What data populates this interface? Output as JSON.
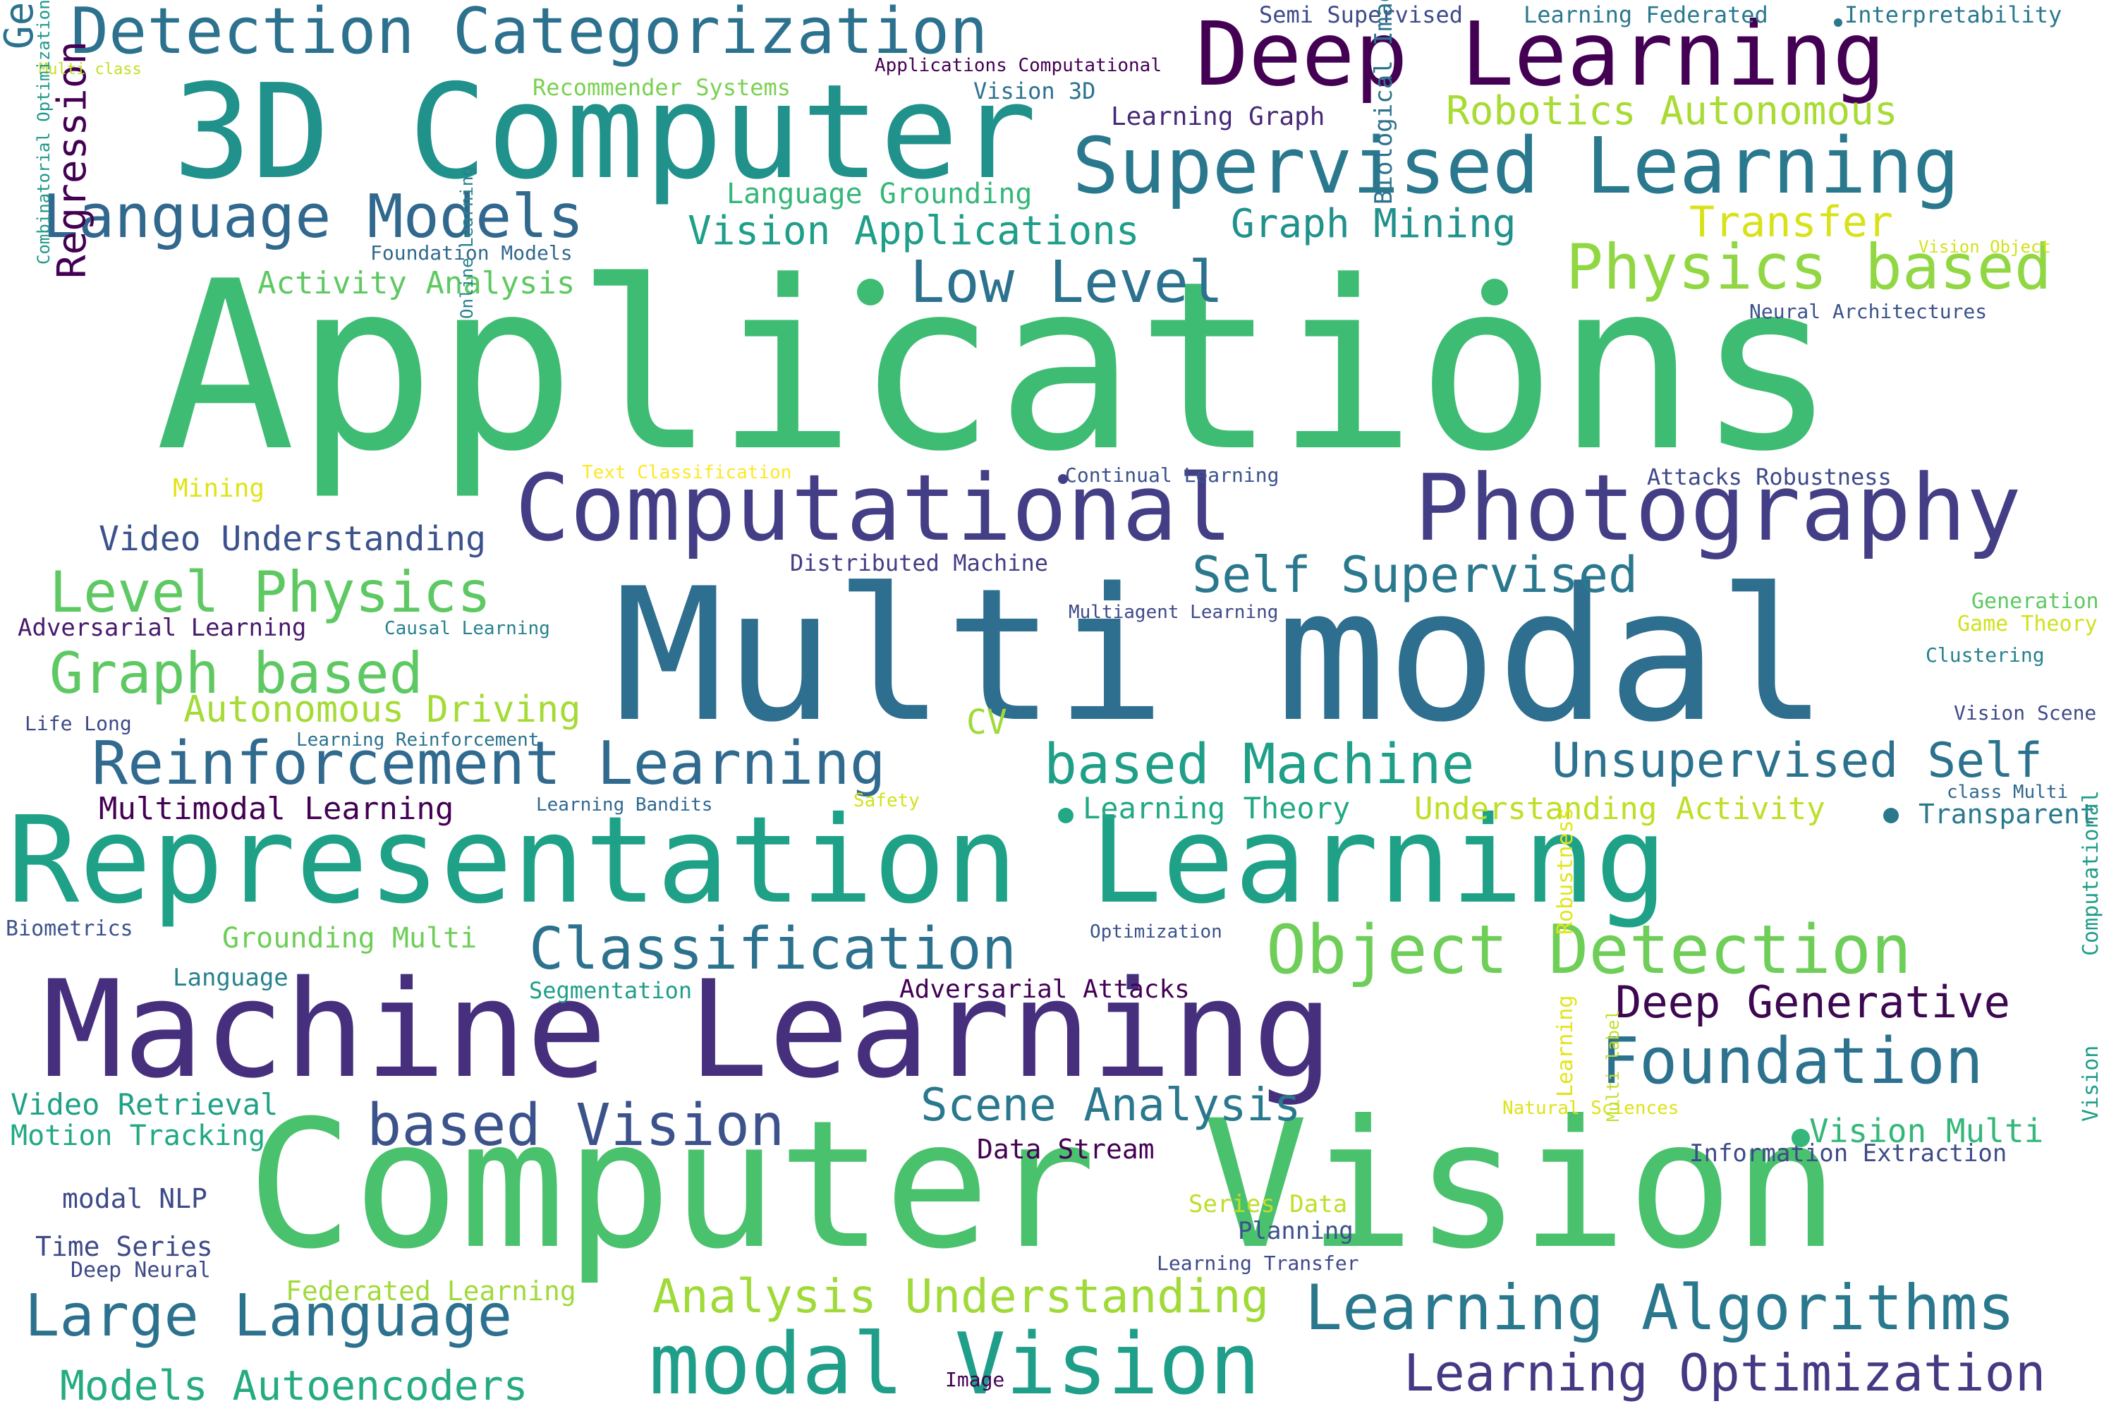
{
  "words": [
    {
      "text": "Applications",
      "color": "#3fbc73"
    },
    {
      "text": "Multi modal",
      "color": "#2e6e8e"
    },
    {
      "text": "Computer Vision",
      "color": "#4ac16d"
    },
    {
      "text": "Representation Learning",
      "color": "#1fa187"
    },
    {
      "text": "Machine Learning",
      "color": "#46307e"
    },
    {
      "text": "3D Computer",
      "color": "#21918c"
    },
    {
      "text": "Deep Learning",
      "color": "#440154"
    },
    {
      "text": "Computational",
      "color": "#433e85"
    },
    {
      "text": "Photography",
      "color": "#433e85"
    },
    {
      "text": "Supervised Learning",
      "color": "#2a788e"
    },
    {
      "text": "Detection Categorization",
      "color": "#2c728e"
    },
    {
      "text": "Language Models",
      "color": "#31688e"
    },
    {
      "text": "modal Vision",
      "color": "#1f9e89"
    },
    {
      "text": "Reinforcement Learning",
      "color": "#306a8e"
    },
    {
      "text": "based Machine",
      "color": "#1f9f88"
    },
    {
      "text": "Object Detection",
      "color": "#6ece58"
    },
    {
      "text": "Physics based",
      "color": "#90d743"
    },
    {
      "text": "Learning Algorithms",
      "color": "#2a788e"
    },
    {
      "text": "Large Language",
      "color": "#2c728e"
    },
    {
      "text": "Level Physics",
      "color": "#5ec962"
    },
    {
      "text": "Foundation",
      "color": "#2c728e"
    },
    {
      "text": "based Vision",
      "color": "#3b528b"
    },
    {
      "text": "Classification",
      "color": "#2c728e"
    },
    {
      "text": "Low Level",
      "color": "#2c728e"
    },
    {
      "text": "Graph based",
      "color": "#5ec962"
    },
    {
      "text": "Learning Optimization",
      "color": "#443983"
    },
    {
      "text": "Self Supervised",
      "color": "#2a788e"
    },
    {
      "text": "Unsupervised Self",
      "color": "#2c728e"
    },
    {
      "text": "Deep Generative",
      "color": "#3e0751"
    },
    {
      "text": "Analysis Understanding",
      "color": "#a0da39"
    },
    {
      "text": "Scene Analysis",
      "color": "#2a788e"
    },
    {
      "text": "Models Autoencoders",
      "color": "#25ab82"
    },
    {
      "text": "Vision Applications",
      "color": "#1f9e89"
    },
    {
      "text": "Robotics Autonomous",
      "color": "#a8db34"
    },
    {
      "text": "Transfer",
      "color": "#d8e219"
    },
    {
      "text": "Graph Mining",
      "color": "#21918c"
    },
    {
      "text": "Autonomous Driving",
      "color": "#a5db36"
    },
    {
      "text": "Video Understanding",
      "color": "#3b528b"
    },
    {
      "text": "Regression",
      "color": "#440154"
    },
    {
      "text": "Generative Models",
      "color": "#2c728e"
    },
    {
      "text": "Multimodal Learning",
      "color": "#440154"
    },
    {
      "text": "Learning Theory",
      "color": "#22a884"
    },
    {
      "text": "Understanding Activity",
      "color": "#bddf26"
    },
    {
      "text": "Transparent",
      "color": "#2a788e"
    },
    {
      "text": "Vision Multi",
      "color": "#35b779"
    },
    {
      "text": "Grounding Multi",
      "color": "#6ece58"
    },
    {
      "text": "Video Retrieval",
      "color": "#1fa187"
    },
    {
      "text": "Motion Tracking",
      "color": "#22a884"
    },
    {
      "text": "Activity Analysis",
      "color": "#5ec962"
    },
    {
      "text": "Language Grounding",
      "color": "#35b779"
    },
    {
      "text": "Recommender Systems",
      "color": "#7ad151"
    },
    {
      "text": "Vision 3D",
      "color": "#2c728e"
    },
    {
      "text": "Learning Graph",
      "color": "#482878"
    },
    {
      "text": "Semi Supervised",
      "color": "#3e4a89"
    },
    {
      "text": "Learning Federated",
      "color": "#2a788e"
    },
    {
      "text": "Interpretability",
      "color": "#2a788e"
    },
    {
      "text": "Applications Computational",
      "color": "#440154"
    },
    {
      "text": "Multi class",
      "color": "#c2df23"
    },
    {
      "text": "Foundation Models",
      "color": "#31688e"
    },
    {
      "text": "Vision Object",
      "color": "#d2e21b"
    },
    {
      "text": "Neural Architectures",
      "color": "#3b528b"
    },
    {
      "text": "Biological Imaging",
      "color": "#2c728e"
    },
    {
      "text": "Online Learning",
      "color": "#26828e"
    },
    {
      "text": "Combinatorial Optimization",
      "color": "#1f988b"
    },
    {
      "text": "Mining",
      "color": "#e0e318"
    },
    {
      "text": "Text Classification",
      "color": "#fde725"
    },
    {
      "text": "Continual Learning",
      "color": "#3b528b"
    },
    {
      "text": "Attacks Robustness",
      "color": "#3e4a89"
    },
    {
      "text": "Distributed Machine",
      "color": "#433e85"
    },
    {
      "text": "Multiagent Learning",
      "color": "#3e4a89"
    },
    {
      "text": "Adversarial Learning",
      "color": "#481a6c"
    },
    {
      "text": "Causal Learning",
      "color": "#26828e"
    },
    {
      "text": "Generation",
      "color": "#5ec962"
    },
    {
      "text": "Game Theory",
      "color": "#d0e11c"
    },
    {
      "text": "Clustering",
      "color": "#26828e"
    },
    {
      "text": "Life Long",
      "color": "#3e4a89"
    },
    {
      "text": "Learning Reinforcement",
      "color": "#2c728e"
    },
    {
      "text": "CV",
      "color": "#a0da39"
    },
    {
      "text": "Vision Scene",
      "color": "#3e4a89"
    },
    {
      "text": "class Multi",
      "color": "#31688e"
    },
    {
      "text": "Learning Bandits",
      "color": "#31688e"
    },
    {
      "text": "Safety",
      "color": "#d2e21b"
    },
    {
      "text": "Biometrics",
      "color": "#3b528b"
    },
    {
      "text": "Optimization",
      "color": "#3b528b"
    },
    {
      "text": "Language",
      "color": "#26828e"
    },
    {
      "text": "Segmentation",
      "color": "#1f9e89"
    },
    {
      "text": "Adversarial Attacks",
      "color": "#440154"
    },
    {
      "text": "Robustness",
      "color": "#e3e418"
    },
    {
      "text": "Learning",
      "color": "#e3e418"
    },
    {
      "text": "Natural Sciences",
      "color": "#dde318"
    },
    {
      "text": "Multi label",
      "color": "#c0df25"
    },
    {
      "text": "Computational",
      "color": "#1f9e89"
    },
    {
      "text": "Vision",
      "color": "#1f9e89"
    },
    {
      "text": "Information Extraction",
      "color": "#3e4a89"
    },
    {
      "text": "Data Stream",
      "color": "#440154"
    },
    {
      "text": "modal NLP",
      "color": "#3e4a89"
    },
    {
      "text": "Series Data",
      "color": "#bddf26"
    },
    {
      "text": "Planning",
      "color": "#3b528b"
    },
    {
      "text": "Time Series",
      "color": "#3e4a89"
    },
    {
      "text": "Deep Neural",
      "color": "#3e4a89"
    },
    {
      "text": "Learning Transfer",
      "color": "#3e4a89"
    },
    {
      "text": "Federated Learning",
      "color": "#9fda3a"
    },
    {
      "text": "Image",
      "color": "#440154"
    }
  ]
}
